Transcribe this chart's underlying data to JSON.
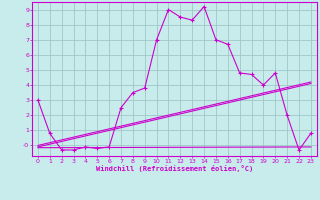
{
  "title": "",
  "xlabel": "Windchill (Refroidissement éolien,°C)",
  "ylabel": "",
  "background_color": "#c8ecec",
  "grid_color": "#a0c8c8",
  "line_color": "#cc00cc",
  "spine_color": "#8800aa",
  "xlim": [
    -0.5,
    23.5
  ],
  "ylim": [
    -0.7,
    9.5
  ],
  "xticks": [
    0,
    1,
    2,
    3,
    4,
    5,
    6,
    7,
    8,
    9,
    10,
    11,
    12,
    13,
    14,
    15,
    16,
    17,
    18,
    19,
    20,
    21,
    22,
    23
  ],
  "yticks": [
    0,
    1,
    2,
    3,
    4,
    5,
    6,
    7,
    8,
    9
  ],
  "line1_x": [
    0,
    1,
    2,
    3,
    4,
    5,
    6,
    7,
    8,
    9,
    10,
    11,
    12,
    13,
    14,
    15,
    16,
    17,
    18,
    19,
    20,
    21,
    22,
    23
  ],
  "line1_y": [
    3.0,
    0.8,
    -0.3,
    -0.3,
    -0.1,
    -0.2,
    -0.1,
    2.5,
    3.5,
    3.8,
    7.0,
    9.0,
    8.5,
    8.3,
    9.2,
    7.0,
    6.7,
    4.8,
    4.7,
    4.0,
    4.8,
    2.0,
    -0.3,
    0.8
  ],
  "line2_x": [
    0,
    23
  ],
  "line2_y": [
    0.0,
    4.2
  ],
  "line3_x": [
    0,
    23
  ],
  "line3_y": [
    -0.1,
    4.1
  ],
  "line4_x": [
    0,
    23
  ],
  "line4_y": [
    -0.15,
    -0.1
  ]
}
